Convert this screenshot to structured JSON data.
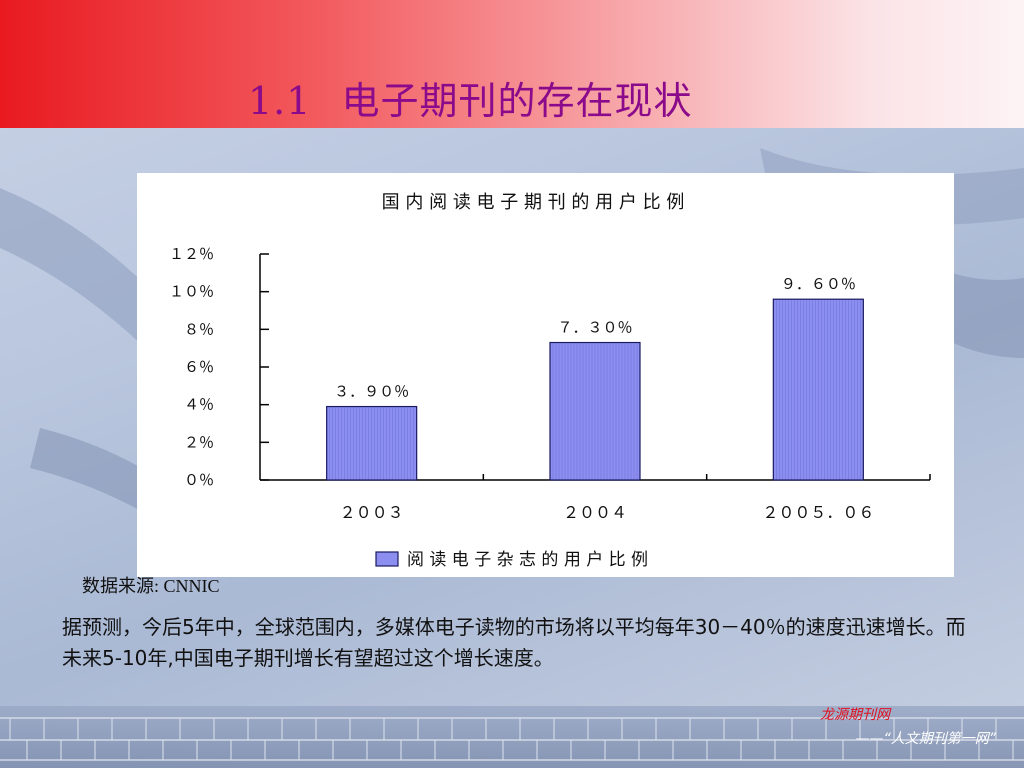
{
  "slide": {
    "title_number": "1.1",
    "title_text": "电子期刊的存在现状",
    "source_note": "数据来源: CNNIC",
    "body": "据预测，今后5年中，全球范围内，多媒体电子读物的市场将以平均每年30－40％的速度迅速增长。而未来5-10年,中国电子期刊增长有望超过这个增长速度。",
    "brand": "龙源期刊网",
    "tagline": "——“人文期刊第一网”"
  },
  "colors": {
    "header_red": "#e81a20",
    "title_purple": "#8b0a8b",
    "bar_fill": "#8c8ff0",
    "bar_stroke": "#1a1a60",
    "brand_red": "#e01020"
  },
  "chart_data": {
    "type": "bar",
    "title": "国 内 阅 读 电 子 期 刊 的 用 户 比 例",
    "categories": [
      "２００３",
      "２００４",
      "２００５．０６"
    ],
    "series": [
      {
        "name": "阅 读 电 子 杂 志 的 用 户 比 例",
        "values": [
          3.9,
          7.3,
          9.6
        ],
        "labels": [
          "３．９０％",
          "７．３０％",
          "９．６０％"
        ]
      }
    ],
    "ylim": [
      0,
      12
    ],
    "y_ticks": [
      {
        "value": 0,
        "label": "０％"
      },
      {
        "value": 2,
        "label": "２％"
      },
      {
        "value": 4,
        "label": "４％"
      },
      {
        "value": 6,
        "label": "６％"
      },
      {
        "value": 8,
        "label": "８％"
      },
      {
        "value": 10,
        "label": "１０％"
      },
      {
        "value": 12,
        "label": "１２％"
      }
    ],
    "grid": false,
    "legend_position": "bottom"
  }
}
